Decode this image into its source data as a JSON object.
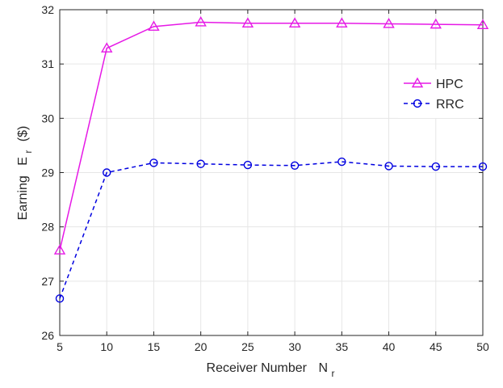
{
  "chart_data": {
    "type": "line",
    "xlabel": "Receiver Number",
    "xlabel_symbol": "N",
    "xlabel_subscript": "r",
    "ylabel": "Earning",
    "ylabel_symbol": "E",
    "ylabel_subscript": "r",
    "ylabel_unit": "($)",
    "x": [
      5,
      10,
      15,
      20,
      25,
      30,
      35,
      40,
      45,
      50
    ],
    "xlim": [
      5,
      50
    ],
    "ylim": [
      26,
      32
    ],
    "x_ticks": [
      5,
      10,
      15,
      20,
      25,
      30,
      35,
      40,
      45,
      50
    ],
    "y_ticks": [
      26,
      27,
      28,
      29,
      30,
      31,
      32
    ],
    "grid": true,
    "legend_position": "upper-right",
    "series": [
      {
        "name": "HPC",
        "values": [
          27.57,
          31.29,
          31.69,
          31.77,
          31.75,
          31.75,
          31.75,
          31.74,
          31.73,
          31.72
        ],
        "color": "#e619e6",
        "line_style": "solid",
        "marker": "triangle"
      },
      {
        "name": "RRC",
        "values": [
          26.68,
          29.0,
          29.18,
          29.16,
          29.14,
          29.13,
          29.2,
          29.12,
          29.11,
          29.11
        ],
        "color": "#0000e0",
        "line_style": "dashed",
        "marker": "circle"
      }
    ]
  }
}
